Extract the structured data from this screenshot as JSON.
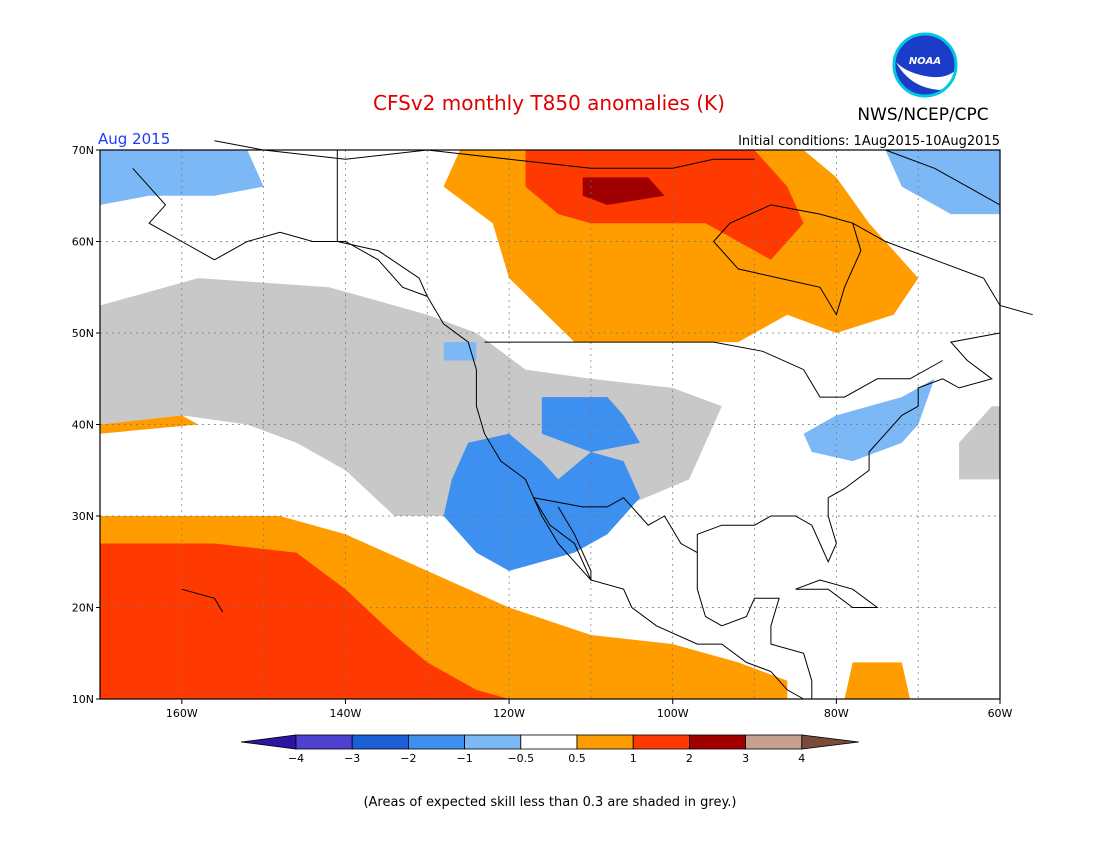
{
  "header": {
    "title": "CFSv2 monthly T850 anomalies (K)",
    "org": "NWS/NCEP/CPC",
    "logo_text": "NOAA",
    "month": "Aug 2015",
    "initial_conditions": "Initial conditions: 1Aug2015-10Aug2015"
  },
  "map": {
    "lon_range": [
      -170,
      -60
    ],
    "lat_range": [
      10,
      70
    ],
    "lat_ticks": [
      {
        "value": 70,
        "label": "70N"
      },
      {
        "value": 60,
        "label": "60N"
      },
      {
        "value": 50,
        "label": "50N"
      },
      {
        "value": 40,
        "label": "40N"
      },
      {
        "value": 30,
        "label": "30N"
      },
      {
        "value": 20,
        "label": "20N"
      },
      {
        "value": 10,
        "label": "10N"
      }
    ],
    "lon_ticks": [
      {
        "value": -160,
        "label": "160W"
      },
      {
        "value": -140,
        "label": "140W"
      },
      {
        "value": -120,
        "label": "120W"
      },
      {
        "value": -100,
        "label": "100W"
      },
      {
        "value": -80,
        "label": "80W"
      },
      {
        "value": -60,
        "label": "60W"
      }
    ]
  },
  "colorbar": {
    "labels": [
      "−4",
      "−3",
      "−2",
      "−1",
      "−0.5",
      "0.5",
      "1",
      "2",
      "3",
      "4"
    ],
    "colors": [
      "#2a16a0",
      "#5040d0",
      "#1a5fd8",
      "#3d8ff0",
      "#7cb8f5",
      "#ffffff",
      "#ff9d00",
      "#ff3a00",
      "#a00000",
      "#c8a090",
      "#7a4a3a"
    ],
    "low_color": "#2a16a0",
    "high_color": "#7a4a3a"
  },
  "footnote": "(Areas of expected skill less than 0.3 are shaded in grey.)",
  "colors": {
    "grey": "#c8c8c8",
    "neg2": "#3d8ff0",
    "neg1": "#7cb8f5",
    "pos1": "#ff9d00",
    "pos2": "#ff3a00",
    "pos3": "#a00000"
  }
}
